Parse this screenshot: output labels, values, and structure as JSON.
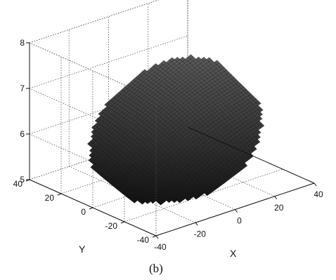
{
  "figure": {
    "caption": "(b)"
  },
  "colors": {
    "axes": "#111111",
    "grid": "#555555",
    "surface_dark": "#0a0a0a",
    "surface_light": "#8a8a8a",
    "background": "#ffffff"
  },
  "chart_data": {
    "type": "surface3d",
    "title": "",
    "xlabel": "X",
    "ylabel": "Y",
    "zlabel": "",
    "xlim": [
      -40,
      40
    ],
    "ylim": [
      -40,
      40
    ],
    "zlim": [
      5,
      8
    ],
    "x_ticks": [
      -40,
      -20,
      0,
      20,
      40
    ],
    "y_ticks": [
      -40,
      -20,
      0,
      20,
      40
    ],
    "z_ticks": [
      5,
      6,
      7,
      8
    ],
    "x_tick_labels": [
      "-40",
      "-20",
      "0",
      "20",
      "40"
    ],
    "y_tick_labels": [
      "-40",
      "-20",
      "0",
      "20",
      "40"
    ],
    "z_tick_labels": [
      "5",
      "6",
      "7",
      "8"
    ],
    "grid": true,
    "box": true,
    "surface": {
      "description": "dense dotted mesh of a saddle-shaped dome rising from low z at negative X/Y toward about z=7.6 at positive X/Y",
      "x_range": [
        -30,
        34
      ],
      "y_range": [
        -34,
        34
      ],
      "z_range": [
        5.0,
        7.6
      ]
    }
  }
}
